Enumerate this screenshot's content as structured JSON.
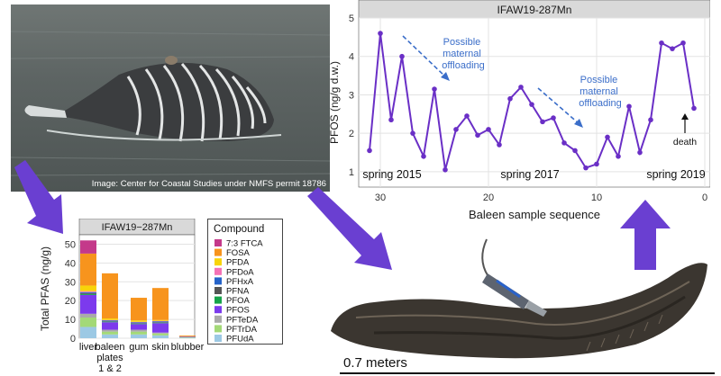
{
  "photo": {
    "caption": "Image: Center for Coastal Studies under NMFS permit 18786"
  },
  "pfos_chart": {
    "panel_title": "IFAW19-287Mn",
    "ylabel": "PFOS (ng/g d.w.)",
    "xlabel": "Baleen sample sequence",
    "annotations": {
      "offload1": [
        "Possible",
        "maternal",
        "offloading"
      ],
      "offload2": [
        "Possible",
        "maternal",
        "offloading"
      ],
      "death": "death",
      "spring2015": "spring 2015",
      "spring2017": "spring 2017",
      "spring2019": "spring 2019"
    }
  },
  "bar_chart": {
    "panel_title": "IFAW19−287Mn",
    "ylabel": "Total PFAS (ng/g)",
    "categories": [
      "liver",
      "baleen",
      "plates",
      "1 & 2",
      "gum",
      "skin",
      "blubber"
    ]
  },
  "legend": {
    "title": "Compound",
    "items": [
      {
        "label": "7:3 FTCA",
        "color": "#c4398a"
      },
      {
        "label": "FOSA",
        "color": "#f7941d"
      },
      {
        "label": "PFDA",
        "color": "#f8d40a"
      },
      {
        "label": "PFDoA",
        "color": "#f472b6"
      },
      {
        "label": "PFHxA",
        "color": "#2563c9"
      },
      {
        "label": "PFNA",
        "color": "#555555"
      },
      {
        "label": "PFOA",
        "color": "#16a34a"
      },
      {
        "label": "PFOS",
        "color": "#7c3aed"
      },
      {
        "label": "PFTeDA",
        "color": "#aaaaaa"
      },
      {
        "label": "PFTrDA",
        "color": "#a3d977"
      },
      {
        "label": "PFUdA",
        "color": "#9cc9e4"
      }
    ]
  },
  "baleen_photo": {
    "scale_label": "0.7 meters"
  },
  "chart_data": [
    {
      "type": "line",
      "title": "IFAW19-287Mn",
      "xlabel": "Baleen sample sequence",
      "ylabel": "PFOS (ng/g d.w.)",
      "xlim": [
        32,
        -0.5
      ],
      "ylim": [
        0.6,
        5.0
      ],
      "x_reversed": true,
      "xticks": [
        30,
        20,
        10,
        0
      ],
      "yticks": [
        1,
        2,
        3,
        4,
        5
      ],
      "grid": true,
      "series": [
        {
          "color": "#6a2fc6",
          "x": [
            31,
            30,
            29,
            28,
            27,
            26,
            25,
            24,
            23,
            22,
            21,
            20,
            19,
            18,
            17,
            16,
            15,
            14,
            13,
            12,
            11,
            10,
            9,
            8,
            7,
            6,
            5,
            4,
            3,
            2,
            1
          ],
          "y": [
            1.55,
            4.6,
            2.35,
            4.0,
            2.0,
            1.4,
            3.15,
            1.05,
            2.1,
            2.45,
            1.95,
            2.1,
            1.7,
            2.9,
            3.2,
            2.75,
            2.3,
            2.4,
            1.75,
            1.55,
            1.1,
            1.2,
            1.9,
            1.4,
            2.7,
            1.5,
            2.35,
            4.35,
            4.2,
            4.35,
            2.65
          ]
        }
      ]
    },
    {
      "type": "bar",
      "title": "IFAW19−287Mn",
      "ylabel": "Total PFAS (ng/g)",
      "stacked": true,
      "categories": [
        "liver",
        "baleen plates 1 & 2",
        "gum",
        "skin",
        "blubber"
      ],
      "ylim": [
        0,
        55
      ],
      "yticks": [
        0,
        10,
        20,
        30,
        40,
        50
      ],
      "series": [
        {
          "name": "PFUdA",
          "color": "#9cc9e4",
          "values": [
            6,
            2,
            2,
            1.5,
            0.3
          ]
        },
        {
          "name": "PFTrDA",
          "color": "#a3d977",
          "values": [
            5,
            1.5,
            1.5,
            1,
            0.2
          ]
        },
        {
          "name": "PFTeDA",
          "color": "#aaaaaa",
          "values": [
            2,
            1,
            1,
            0.5,
            0.2
          ]
        },
        {
          "name": "PFOS",
          "color": "#7c3aed",
          "values": [
            10,
            4,
            3,
            5,
            0.2
          ]
        },
        {
          "name": "PFOA",
          "color": "#16a34a",
          "values": [
            0.5,
            0.3,
            0.3,
            0.3,
            0
          ]
        },
        {
          "name": "PFNA",
          "color": "#555555",
          "values": [
            0.5,
            0.2,
            0.2,
            0.2,
            0
          ]
        },
        {
          "name": "PFHxA",
          "color": "#2563c9",
          "values": [
            0.5,
            0.5,
            0.5,
            0.5,
            0
          ]
        },
        {
          "name": "PFDoA",
          "color": "#f472b6",
          "values": [
            0.5,
            0.2,
            0.2,
            0.2,
            0
          ]
        },
        {
          "name": "PFDA",
          "color": "#f8d40a",
          "values": [
            3,
            0.8,
            0.8,
            0.5,
            0
          ]
        },
        {
          "name": "FOSA",
          "color": "#f7941d",
          "values": [
            17,
            24,
            12,
            17,
            0.5
          ]
        },
        {
          "name": "7:3 FTCA",
          "color": "#c4398a",
          "values": [
            7,
            0,
            0,
            0,
            0
          ]
        }
      ]
    }
  ]
}
